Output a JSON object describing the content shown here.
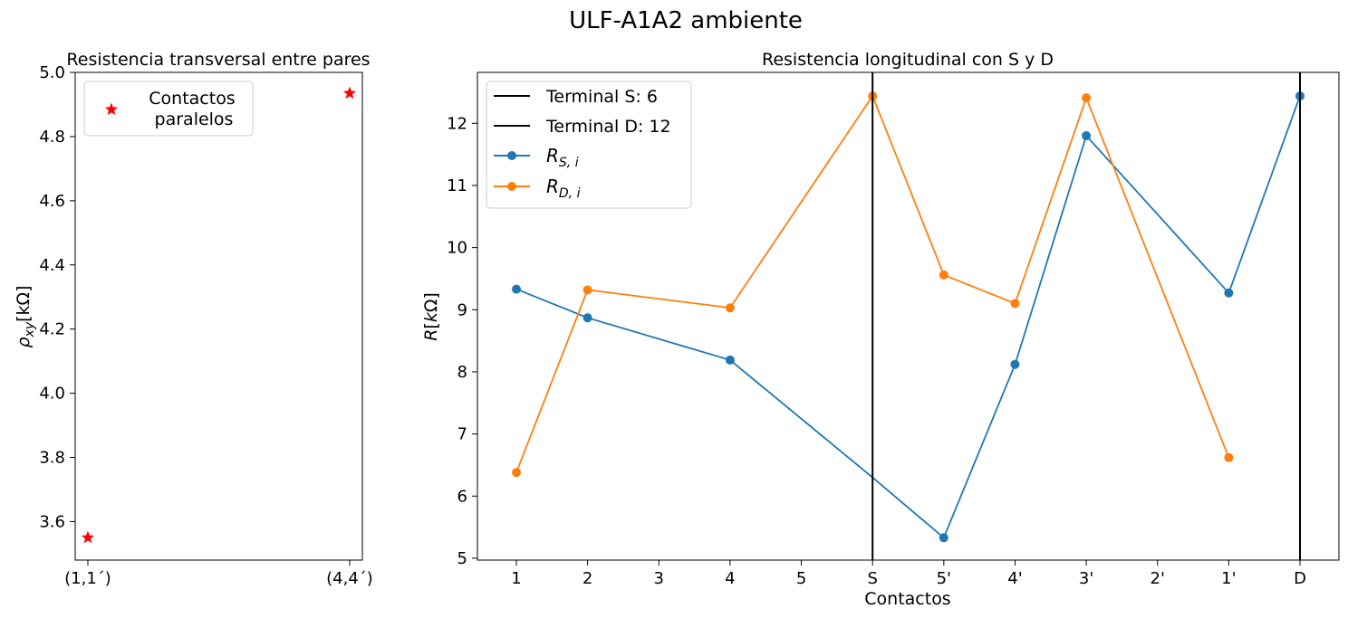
{
  "figure": {
    "suptitle": "ULF-A1A2 ambiente"
  },
  "colors": {
    "star": "#ff0000",
    "series_s": "#1f77b4",
    "series_d": "#ff7f0e",
    "vline": "#000000",
    "axes": "#000000",
    "legend_border": "#cccccc"
  },
  "chart_data": [
    {
      "type": "scatter",
      "title": "Resistencia transversal entre pares",
      "xlabel": "",
      "ylabel": "ρ_xy[kΩ]",
      "ylabel_parts": {
        "rho": "ρ",
        "sub": "xy",
        "unit": "[kΩ]"
      },
      "categories": [
        "(1,1´)",
        "(4,4´)"
      ],
      "series": [
        {
          "name": "Contactos paralelos",
          "values": [
            3.55,
            4.935
          ]
        }
      ],
      "legend": {
        "line1": "Contactos",
        "line2": "paralelos",
        "position": "upper-left"
      },
      "ylim": [
        3.48,
        5.0
      ],
      "yticks": [
        3.6,
        3.8,
        4.0,
        4.2,
        4.4,
        4.6,
        4.8,
        5.0
      ],
      "grid": false
    },
    {
      "type": "line",
      "title": "Resistencia longitudinal con S y D",
      "xlabel": "Contactos",
      "ylabel": "R[kΩ]",
      "categories": [
        "1",
        "2",
        "3",
        "4",
        "5",
        "S",
        "5'",
        "4'",
        "3'",
        "2'",
        "1'",
        "D"
      ],
      "series": [
        {
          "name": "R_S,i",
          "values": [
            9.33,
            8.87,
            null,
            8.19,
            null,
            6.3,
            5.33,
            8.12,
            11.8,
            null,
            9.27,
            12.44
          ]
        },
        {
          "name": "R_D,i",
          "values": [
            6.38,
            9.32,
            null,
            9.03,
            null,
            12.44,
            9.56,
            9.1,
            12.41,
            null,
            6.62,
            null
          ]
        }
      ],
      "vlines": [
        {
          "name": "Terminal S: 6",
          "x": "S"
        },
        {
          "name": "Terminal D: 12",
          "x": "D"
        }
      ],
      "legend_labels": {
        "s_base": "R",
        "s_sub": "S, i",
        "d_base": "R",
        "d_sub": "D, i"
      },
      "legend_position": "upper-left",
      "ylim": [
        4.97,
        12.82
      ],
      "yticks": [
        5,
        6,
        7,
        8,
        9,
        10,
        11,
        12
      ],
      "grid": false
    }
  ]
}
